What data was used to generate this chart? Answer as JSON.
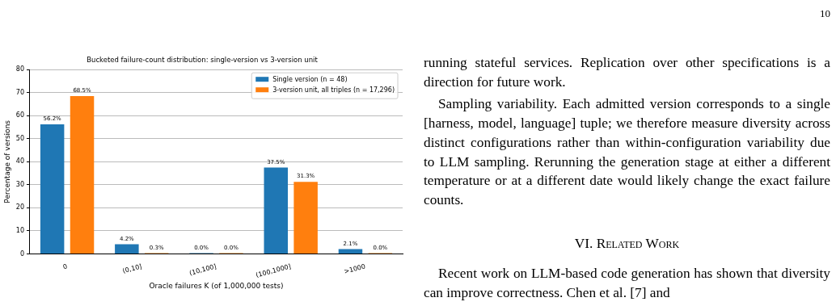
{
  "chart_data": [
    {
      "type": "bar",
      "title": "Bucketed failure-count distribution: single-version vs 3-version unit",
      "xlabel": "Oracle failures K (of 1,000,000 tests)",
      "ylabel": "Percentage of versions",
      "categories": [
        "0",
        "(0,10]",
        "(10,100]",
        "(100,1000]",
        ">1000"
      ],
      "series": [
        {
          "name": "Single version (n = 48)",
          "color": "#1f77b4",
          "values": [
            56.2,
            4.2,
            0.0,
            37.5,
            2.1
          ],
          "value_labels": [
            "56.2%",
            "4.2%",
            "0.0%",
            "37.5%",
            "2.1%"
          ]
        },
        {
          "name": "3-version unit, all triples (n = 17,296)",
          "color": "#ff7f0e",
          "values": [
            68.5,
            0.3,
            0.0,
            31.3,
            0.0
          ],
          "value_labels": [
            "68.5%",
            "0.3%",
            "0.0%",
            "31.3%",
            "0.0%"
          ]
        }
      ],
      "ylim": [
        0,
        80
      ],
      "yticks": [
        0,
        10,
        20,
        30,
        40,
        50,
        60,
        70,
        80
      ],
      "grid": "y",
      "legend": "top right"
    },
    {
      "type": "other",
      "title": "VI. Related Work",
      "annotations": [
        "10",
        "running stateful services. Replication over other specifications is a direction for future work.",
        "Sampling variability. Each admitted version corresponds to a single [harness, model, language] tuple; we therefore measure diversity across distinct configurations rather than within-configuration variability due to LLM sampling. Rerunning the generation stage at either a different temperature or at a different date would likely change the exact failure counts.",
        "Recent work on LLM-based code generation has shown that diversity can improve correctness. Chen et al. [7] and"
      ]
    }
  ]
}
